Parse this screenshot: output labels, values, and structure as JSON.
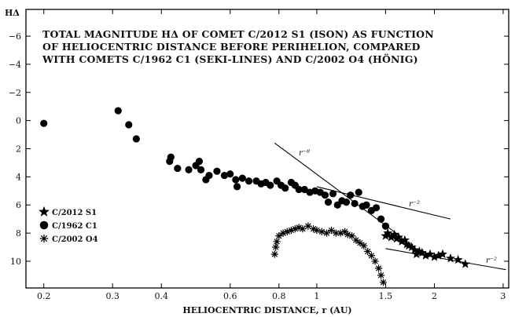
{
  "chart_data": {
    "type": "scatter",
    "title_lines": [
      "TOTAL MAGNITUDE HΔ OF COMET C/2012 S1 (ISON) AS FUNCTION",
      "OF HELIOCENTRIC DISTANCE BEFORE PERIHELION, COMPARED",
      "WITH COMETS C/1962 C1 (SEKI-LINES) AND C/2002 O4 (HÖNIG)"
    ],
    "xlabel": "HELIOCENTRIC DISTANCE, r (AU)",
    "ylabel": "HΔ",
    "x_scale": "log",
    "y_inverted": true,
    "xlim": [
      0.18,
      3.1
    ],
    "ylim": [
      -7.9,
      11.9
    ],
    "x_ticks": [
      0.2,
      0.3,
      0.4,
      0.6,
      0.8,
      1,
      1.5,
      2,
      3
    ],
    "x_tick_labels": [
      "0.2",
      "0.3",
      "0.4",
      "0.6",
      "0.8",
      "1",
      "1.5",
      "2",
      "3"
    ],
    "y_ticks": [
      -6,
      -4,
      -2,
      0,
      2,
      4,
      6,
      8,
      10
    ],
    "y_tick_labels": [
      "−6",
      "−4",
      "−2",
      "0",
      "2",
      "4",
      "6",
      "8",
      "10"
    ],
    "legend_position": "left",
    "series": [
      {
        "name": "C/2012 S1",
        "marker": "star",
        "points": [
          [
            1.5,
            8.2
          ],
          [
            1.52,
            8.0
          ],
          [
            1.55,
            8.3
          ],
          [
            1.58,
            8.1
          ],
          [
            1.6,
            8.4
          ],
          [
            1.62,
            8.3
          ],
          [
            1.65,
            8.6
          ],
          [
            1.68,
            8.5
          ],
          [
            1.7,
            8.8
          ],
          [
            1.72,
            8.9
          ],
          [
            1.75,
            9.0
          ],
          [
            1.78,
            9.2
          ],
          [
            1.8,
            9.5
          ],
          [
            1.83,
            9.3
          ],
          [
            1.86,
            9.4
          ],
          [
            1.9,
            9.6
          ],
          [
            1.95,
            9.5
          ],
          [
            2.0,
            9.7
          ],
          [
            2.05,
            9.6
          ],
          [
            2.1,
            9.5
          ],
          [
            2.2,
            9.8
          ],
          [
            2.3,
            9.9
          ],
          [
            2.4,
            10.2
          ]
        ]
      },
      {
        "name": "C/1962 C1",
        "marker": "circle",
        "points": [
          [
            0.2,
            0.2
          ],
          [
            0.31,
            -0.7
          ],
          [
            0.33,
            0.3
          ],
          [
            0.345,
            1.3
          ],
          [
            0.42,
            2.9
          ],
          [
            0.423,
            2.6
          ],
          [
            0.44,
            3.4
          ],
          [
            0.47,
            3.5
          ],
          [
            0.49,
            3.2
          ],
          [
            0.5,
            2.9
          ],
          [
            0.505,
            3.5
          ],
          [
            0.52,
            4.2
          ],
          [
            0.53,
            3.9
          ],
          [
            0.555,
            3.6
          ],
          [
            0.58,
            3.9
          ],
          [
            0.6,
            3.8
          ],
          [
            0.62,
            4.2
          ],
          [
            0.625,
            4.7
          ],
          [
            0.645,
            4.1
          ],
          [
            0.67,
            4.3
          ],
          [
            0.7,
            4.3
          ],
          [
            0.72,
            4.5
          ],
          [
            0.74,
            4.4
          ],
          [
            0.76,
            4.6
          ],
          [
            0.79,
            4.3
          ],
          [
            0.81,
            4.6
          ],
          [
            0.83,
            4.8
          ],
          [
            0.86,
            4.4
          ],
          [
            0.88,
            4.6
          ],
          [
            0.9,
            4.9
          ],
          [
            0.93,
            4.9
          ],
          [
            0.96,
            5.1
          ],
          [
            0.99,
            5.0
          ],
          [
            1.02,
            5.1
          ],
          [
            1.05,
            5.3
          ],
          [
            1.07,
            5.8
          ],
          [
            1.1,
            5.2
          ],
          [
            1.13,
            6.0
          ],
          [
            1.16,
            5.7
          ],
          [
            1.19,
            5.8
          ],
          [
            1.22,
            5.3
          ],
          [
            1.25,
            5.9
          ],
          [
            1.28,
            5.1
          ],
          [
            1.31,
            6.1
          ],
          [
            1.34,
            6.0
          ],
          [
            1.38,
            6.4
          ],
          [
            1.42,
            6.2
          ],
          [
            1.46,
            7.0
          ],
          [
            1.5,
            7.5
          ]
        ]
      },
      {
        "name": "C/2002 O4",
        "marker": "asterisk",
        "points": [
          [
            0.78,
            9.5
          ],
          [
            0.785,
            9.0
          ],
          [
            0.79,
            8.6
          ],
          [
            0.8,
            8.2
          ],
          [
            0.82,
            8.0
          ],
          [
            0.84,
            7.9
          ],
          [
            0.86,
            7.8
          ],
          [
            0.88,
            7.7
          ],
          [
            0.9,
            7.6
          ],
          [
            0.92,
            7.7
          ],
          [
            0.95,
            7.5
          ],
          [
            0.98,
            7.7
          ],
          [
            1.0,
            7.8
          ],
          [
            1.03,
            7.9
          ],
          [
            1.06,
            8.0
          ],
          [
            1.09,
            7.8
          ],
          [
            1.12,
            8.0
          ],
          [
            1.15,
            8.0
          ],
          [
            1.18,
            7.9
          ],
          [
            1.2,
            8.1
          ],
          [
            1.23,
            8.2
          ],
          [
            1.26,
            8.5
          ],
          [
            1.29,
            8.7
          ],
          [
            1.32,
            8.9
          ],
          [
            1.35,
            9.3
          ],
          [
            1.38,
            9.6
          ],
          [
            1.41,
            10.0
          ],
          [
            1.44,
            10.5
          ],
          [
            1.46,
            11.0
          ],
          [
            1.48,
            11.5
          ]
        ]
      }
    ],
    "fit_lines": [
      {
        "label": "r⁻⁸",
        "x1": 0.78,
        "y1": 1.6,
        "x2": 1.65,
        "y2": 8.3
      },
      {
        "label": "r⁻²",
        "x1": 1.0,
        "y1": 4.7,
        "x2": 2.2,
        "y2": 7.0
      },
      {
        "label": "r⁻²",
        "x1": 1.5,
        "y1": 9.1,
        "x2": 3.05,
        "y2": 10.6
      }
    ]
  },
  "annotations": {
    "fit_top": "r⁻⁸",
    "fit_mid": "r⁻²",
    "fit_low": "r⁻²"
  }
}
